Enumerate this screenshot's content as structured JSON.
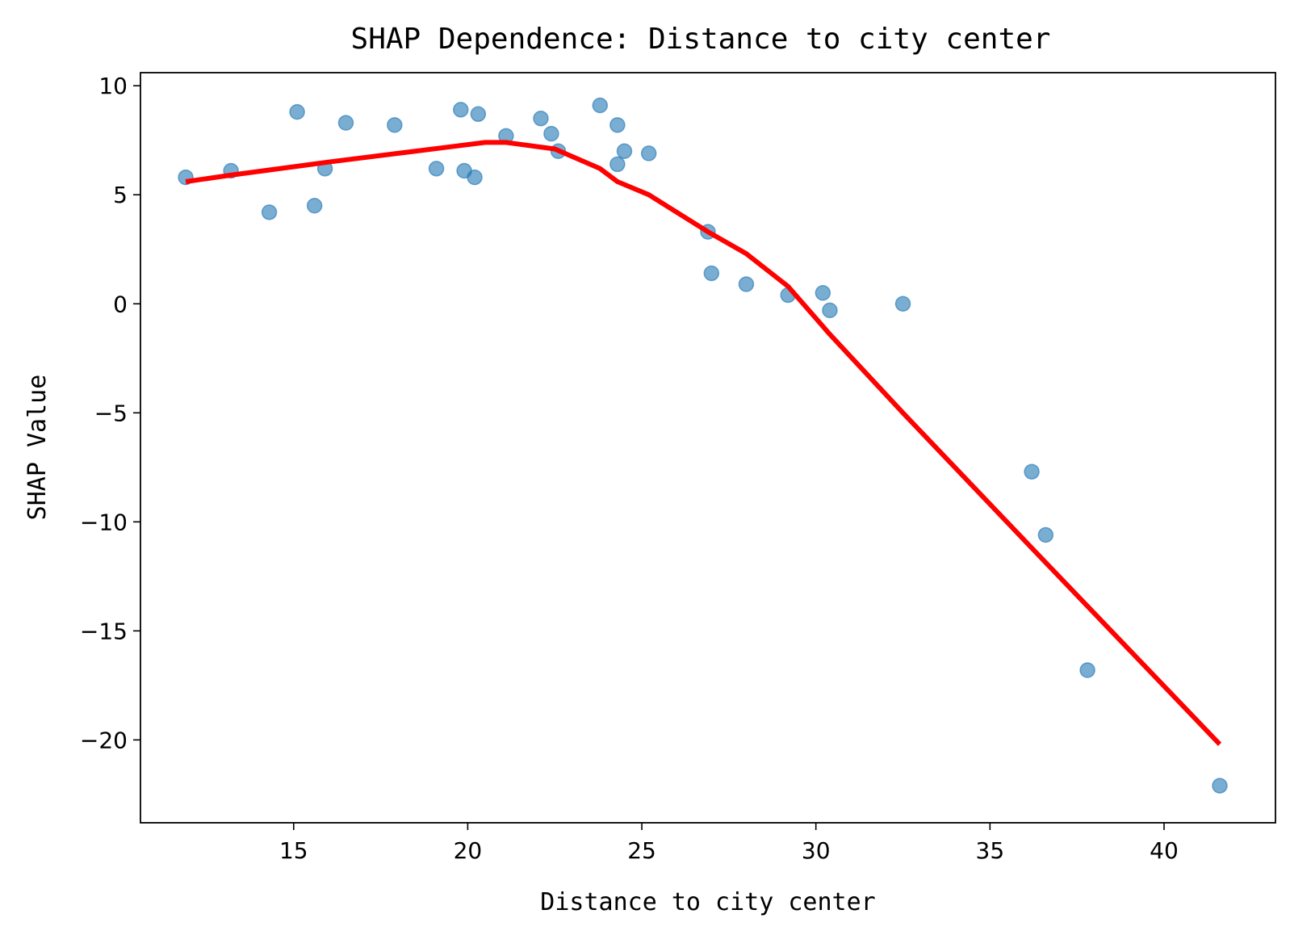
{
  "chart_data": {
    "type": "scatter",
    "title": "SHAP Dependence: Distance to city center",
    "xlabel": "Distance to city center",
    "ylabel": "SHAP Value",
    "xlim": [
      10.6,
      43.2
    ],
    "ylim": [
      -23.8,
      10.6
    ],
    "xticks": [
      15,
      20,
      25,
      30,
      35,
      40
    ],
    "yticks": [
      10,
      5,
      0,
      -5,
      -10,
      -15,
      -20
    ],
    "ytick_labels": [
      "10",
      "5",
      "0",
      "−5",
      "−10",
      "−15",
      "−20"
    ],
    "grid": false,
    "points": {
      "color": "#1f77b4",
      "x": [
        11.9,
        13.2,
        14.3,
        15.1,
        15.6,
        15.9,
        16.5,
        17.9,
        19.1,
        19.8,
        19.9,
        20.2,
        20.3,
        21.1,
        22.1,
        22.4,
        22.6,
        23.8,
        24.3,
        24.3,
        24.5,
        25.2,
        26.9,
        27.0,
        28.0,
        29.2,
        30.2,
        30.4,
        32.5,
        36.2,
        36.6,
        37.8,
        41.6
      ],
      "y": [
        5.8,
        6.1,
        4.2,
        8.8,
        4.5,
        6.2,
        8.3,
        8.2,
        6.2,
        8.9,
        6.1,
        5.8,
        8.7,
        7.7,
        8.5,
        7.8,
        7.0,
        9.1,
        6.4,
        8.2,
        7.0,
        6.9,
        3.3,
        1.4,
        0.9,
        0.4,
        0.5,
        -0.3,
        0.0,
        -7.7,
        -10.6,
        -16.8,
        -22.1
      ]
    },
    "trend_line": {
      "color": "#ff0000",
      "x": [
        11.9,
        13.2,
        16.0,
        18.0,
        19.5,
        20.5,
        21.1,
        22.5,
        23.8,
        24.3,
        25.2,
        26.9,
        28.0,
        29.2,
        30.4,
        32.5,
        36.2,
        41.6
      ],
      "y": [
        5.6,
        5.9,
        6.5,
        6.9,
        7.2,
        7.4,
        7.4,
        7.1,
        6.2,
        5.6,
        5.0,
        3.3,
        2.3,
        0.8,
        -1.4,
        -5.0,
        -11.2,
        -20.2
      ]
    }
  }
}
